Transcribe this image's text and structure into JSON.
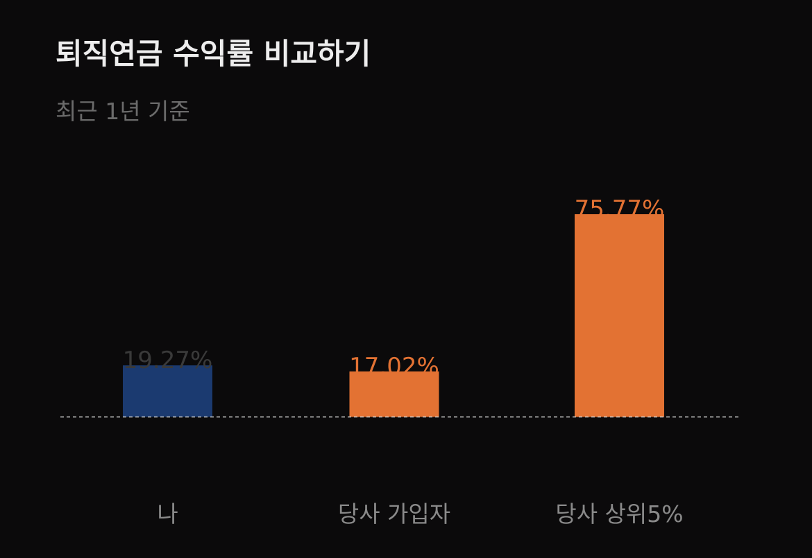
{
  "header": {
    "title": "퇴직연금 수익률 비교하기",
    "subtitle": "최근 1년 기준"
  },
  "chart_data": {
    "type": "bar",
    "title": "퇴직연금 수익률 비교하기",
    "subtitle": "최근 1년 기준",
    "categories": [
      "나",
      "당사 가입자",
      "당사 상위5%"
    ],
    "values": [
      19.27,
      17.02,
      75.77
    ],
    "value_labels": [
      "19.27%",
      "17.02%",
      "75.77%"
    ],
    "bar_colors": [
      "#1b3a70",
      "#e37233",
      "#e37233"
    ],
    "value_label_colors": [
      "#3a3a3a",
      "#e37233",
      "#e37233"
    ],
    "xlabel": "",
    "ylabel": "",
    "ylim": [
      0,
      80
    ],
    "grid": false,
    "legend": "none",
    "baseline": "dashed"
  }
}
